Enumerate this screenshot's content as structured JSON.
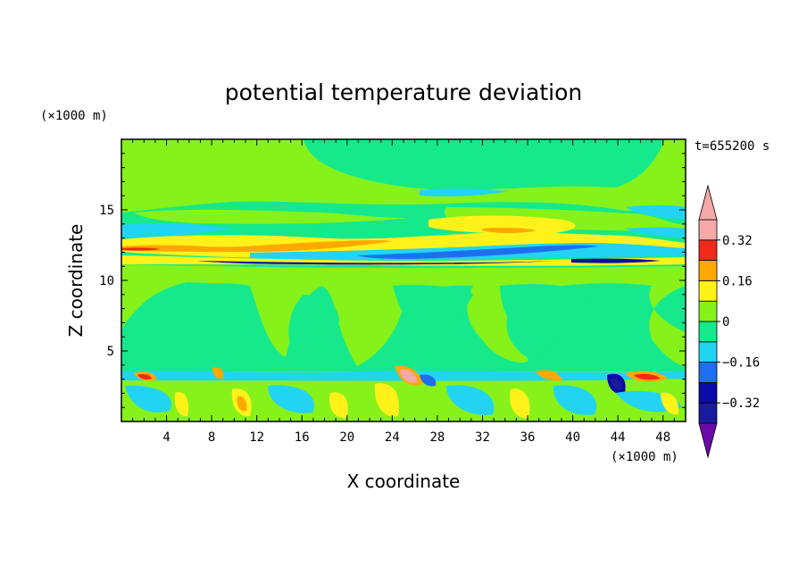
{
  "chart_data": {
    "type": "heatmap",
    "title": "potential temperature deviation",
    "xlabel": "X coordinate",
    "ylabel": "Z coordinate",
    "x_units": "(×1000 m)",
    "y_units": "(×1000 m)",
    "time_label": "t=655200 s",
    "xlim": [
      0,
      50
    ],
    "ylim": [
      0,
      20
    ],
    "xticks": [
      4,
      8,
      12,
      16,
      20,
      24,
      28,
      32,
      36,
      40,
      44,
      48
    ],
    "yticks": [
      5,
      10,
      15
    ],
    "colorbar": {
      "levels": [
        -0.4,
        -0.32,
        -0.24,
        -0.16,
        -0.08,
        0,
        0.08,
        0.16,
        0.24,
        0.32,
        0.4
      ],
      "labeled_levels": [
        0.32,
        0.16,
        0,
        -0.16,
        -0.32
      ],
      "tick_labels": [
        "0.32",
        "0.16",
        "0",
        "−0.16",
        "−0.32"
      ],
      "colors": [
        "#6a0aa8",
        "#1a1a9c",
        "#0b0ba8",
        "#1e6ff0",
        "#22d4f2",
        "#16e88c",
        "#86f21a",
        "#fff21a",
        "#ffa800",
        "#f02a1a",
        "#f4a8a8"
      ]
    }
  }
}
